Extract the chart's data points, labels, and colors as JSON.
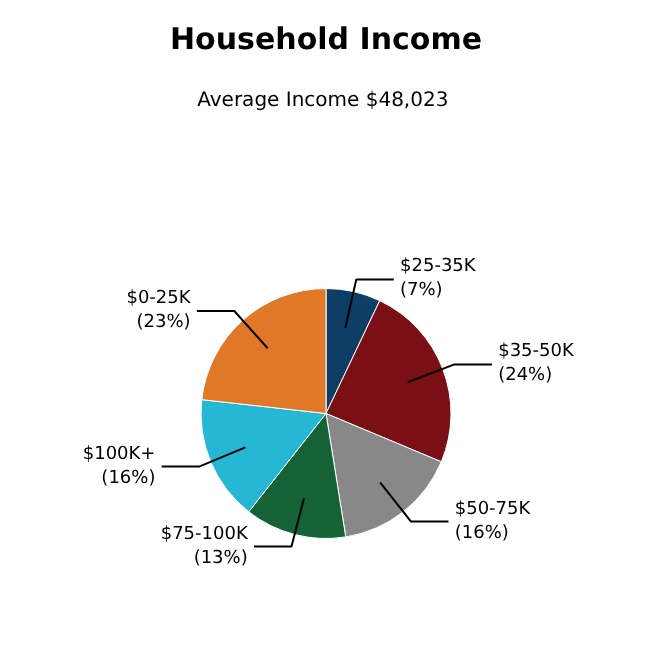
{
  "chart_data": {
    "type": "pie",
    "title": "Household Income",
    "subtitle": "Average Income  $48,023",
    "categories": [
      "$25-35K",
      "$35-50K",
      "$50-75K",
      "$75-100K",
      "$100K+",
      "$0-25K"
    ],
    "values": [
      7,
      24,
      16,
      13,
      16,
      23
    ],
    "value_labels": [
      "(7%)",
      "(24%)",
      "(16%)",
      "(13%)",
      "(16%)",
      "(23%)"
    ],
    "colors": [
      "#0e3e66",
      "#7a1016",
      "#888888",
      "#146236",
      "#25b7d3",
      "#e07828"
    ]
  }
}
